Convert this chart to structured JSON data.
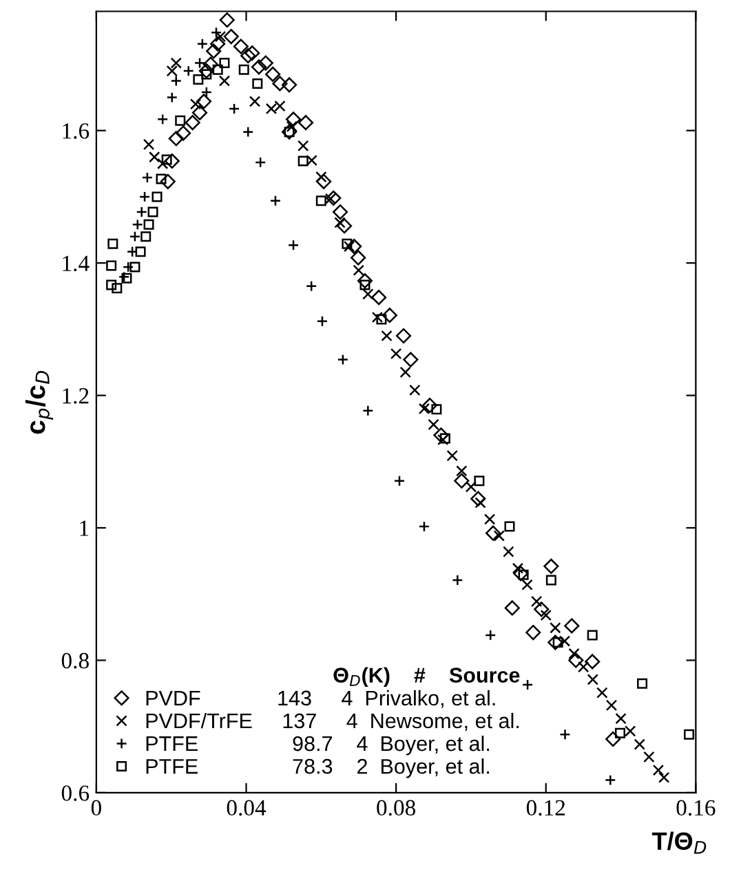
{
  "chart_data": {
    "type": "scatter",
    "xlabel": "T/Θ$_{D}$",
    "ylabel": "c$_{p}$/c$_{D}$",
    "legend_title": "Θ$_{D}$(K)    #    Source",
    "legend": "bottom left",
    "grid": false,
    "xlim": [
      0,
      0.16
    ],
    "xticks": [
      0,
      0.04,
      0.08,
      0.12,
      0.16
    ],
    "ylim": [
      0.6,
      1.78
    ],
    "yticks": [
      0.6,
      0.8,
      1,
      1.2,
      1.4,
      1.6
    ],
    "series": [
      {
        "name": "PVDF             143     4  Privalko, et al.",
        "color": "#000000",
        "marker": "diamond",
        "x": [
          0.0191,
          0.0202,
          0.0213,
          0.0232,
          0.0257,
          0.0276,
          0.0287,
          0.0294,
          0.0305,
          0.0313,
          0.0324,
          0.0349,
          0.036,
          0.0386,
          0.0405,
          0.0416,
          0.0434,
          0.0452,
          0.0471,
          0.049,
          0.0515,
          0.0515,
          0.0526,
          0.0559,
          0.0607,
          0.0633,
          0.0651,
          0.0662,
          0.0688,
          0.0699,
          0.0717,
          0.0754,
          0.0783,
          0.082,
          0.0839,
          0.089,
          0.092,
          0.0975,
          0.1019,
          0.1059,
          0.111,
          0.1133,
          0.1166,
          0.1188,
          0.1214,
          0.1225,
          0.1269,
          0.128,
          0.1324,
          0.1379
        ],
        "values": [
          1.523,
          1.554,
          1.588,
          1.596,
          1.612,
          1.627,
          1.644,
          1.69,
          1.7,
          1.72,
          1.731,
          1.767,
          1.742,
          1.727,
          1.713,
          1.717,
          1.696,
          1.702,
          1.685,
          1.671,
          1.669,
          1.598,
          1.617,
          1.612,
          1.523,
          1.498,
          1.477,
          1.456,
          1.425,
          1.408,
          1.373,
          1.348,
          1.321,
          1.29,
          1.254,
          1.185,
          1.14,
          1.071,
          1.044,
          0.992,
          0.879,
          0.931,
          0.842,
          0.877,
          0.942,
          0.827,
          0.852,
          0.8,
          0.798,
          0.681
        ]
      },
      {
        "name": "PVDF/TrFE     137     4  Newsome, et al.",
        "color": "#000000",
        "marker": "cross",
        "x": [
          0.014,
          0.0155,
          0.0177,
          0.0202,
          0.0213,
          0.0265,
          0.0331,
          0.0342,
          0.0423,
          0.0467,
          0.049,
          0.0522,
          0.0552,
          0.0575,
          0.06,
          0.0625,
          0.065,
          0.0675,
          0.07,
          0.0725,
          0.075,
          0.0775,
          0.08,
          0.0825,
          0.085,
          0.0875,
          0.09,
          0.0925,
          0.095,
          0.0975,
          0.1,
          0.1025,
          0.105,
          0.1075,
          0.11,
          0.1125,
          0.115,
          0.1175,
          0.12,
          0.1225,
          0.125,
          0.1275,
          0.13,
          0.1325,
          0.135,
          0.1375,
          0.14,
          0.1425,
          0.145,
          0.1475,
          0.15,
          0.1515
        ],
        "values": [
          1.579,
          1.56,
          1.55,
          1.69,
          1.702,
          1.64,
          1.742,
          1.675,
          1.644,
          1.633,
          1.637,
          1.606,
          1.577,
          1.555,
          1.53,
          1.497,
          1.461,
          1.425,
          1.389,
          1.353,
          1.318,
          1.29,
          1.263,
          1.235,
          1.208,
          1.18,
          1.156,
          1.133,
          1.109,
          1.086,
          1.062,
          1.038,
          1.013,
          0.988,
          0.964,
          0.939,
          0.914,
          0.889,
          0.868,
          0.849,
          0.829,
          0.81,
          0.79,
          0.771,
          0.751,
          0.732,
          0.712,
          0.693,
          0.673,
          0.654,
          0.634,
          0.623
        ]
      },
      {
        "name": "PTFE                98.7    4  Boyer, et al.",
        "color": "#000000",
        "marker": "plus",
        "x": [
          0.0074,
          0.0085,
          0.0096,
          0.0103,
          0.011,
          0.0121,
          0.0129,
          0.0136,
          0.0177,
          0.0202,
          0.0213,
          0.0246,
          0.0276,
          0.0283,
          0.0294,
          0.032,
          0.0368,
          0.0405,
          0.0438,
          0.0478,
          0.0526,
          0.0574,
          0.0603,
          0.0658,
          0.0725,
          0.0809,
          0.0875,
          0.0964,
          0.1052,
          0.1151,
          0.1251,
          0.1372
        ],
        "values": [
          1.379,
          1.394,
          1.417,
          1.44,
          1.458,
          1.477,
          1.5,
          1.529,
          1.617,
          1.65,
          1.675,
          1.69,
          1.702,
          1.731,
          1.658,
          1.748,
          1.633,
          1.598,
          1.552,
          1.494,
          1.427,
          1.365,
          1.312,
          1.254,
          1.177,
          1.071,
          1.002,
          0.921,
          0.838,
          0.763,
          0.688,
          0.619
        ]
      },
      {
        "name": "PTFE                78.3    2  Boyer, et al.",
        "color": "#000000",
        "marker": "square",
        "x": [
          0.0044,
          0.004,
          0.004,
          0.0055,
          0.0081,
          0.0103,
          0.0118,
          0.0132,
          0.014,
          0.0151,
          0.0162,
          0.0173,
          0.0188,
          0.0224,
          0.0272,
          0.0294,
          0.0324,
          0.0342,
          0.0394,
          0.043,
          0.0515,
          0.0552,
          0.06,
          0.0669,
          0.0717,
          0.0761,
          0.0908,
          0.0931,
          0.1022,
          0.1103,
          0.114,
          0.1214,
          0.1232,
          0.1324,
          0.1398,
          0.1457,
          0.1582
        ],
        "values": [
          1.429,
          1.396,
          1.367,
          1.362,
          1.377,
          1.394,
          1.417,
          1.44,
          1.458,
          1.477,
          1.5,
          1.527,
          1.556,
          1.615,
          1.677,
          1.685,
          1.692,
          1.702,
          1.692,
          1.671,
          1.598,
          1.554,
          1.494,
          1.429,
          1.367,
          1.315,
          1.179,
          1.135,
          1.071,
          1.002,
          0.929,
          0.921,
          0.827,
          0.838,
          0.69,
          0.765,
          0.688
        ]
      }
    ]
  }
}
